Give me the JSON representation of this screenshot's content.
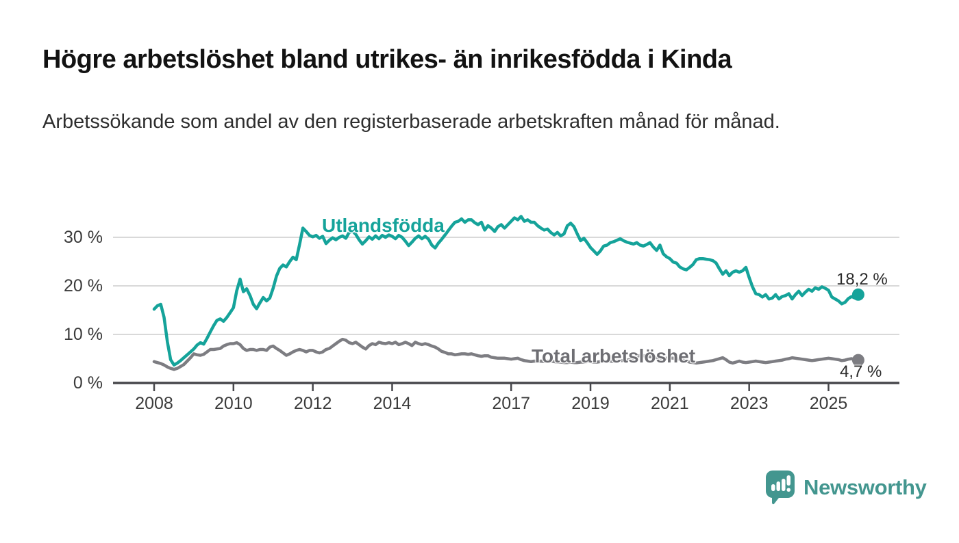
{
  "header": {
    "title": "Högre arbetslöshet bland utrikes- än inrikesfödda i Kinda",
    "subtitle": "Arbetssökande som andel av den registerbaserade arbetskraften månad för månad."
  },
  "annotations": {
    "foreign_born_last": "18,2 %",
    "total_last": "4,7 %"
  },
  "footer": {
    "brand": "Newsworthy"
  },
  "colors": {
    "foreign_born_line": "#15a39a",
    "total_line": "#7d7d82",
    "total_label_text": "#6e6e73",
    "axis_text": "#3b3b3b",
    "annotation_text": "#2b2b2b",
    "gridline": "#d9d9d9",
    "axis_line": "#47474b",
    "brand_teal": "#43968f",
    "background": "#ffffff"
  },
  "chart_data": {
    "type": "line",
    "x_unit": "month",
    "start": "2008-01",
    "end": "2025-10",
    "unit": "%",
    "grid": "horizontal",
    "legend_position": "inline-labels",
    "y_axis": {
      "range": [
        0,
        36
      ],
      "ticks": [
        {
          "value": 0,
          "label": "0 %"
        },
        {
          "value": 10,
          "label": "10 %"
        },
        {
          "value": 20,
          "label": "20 %"
        },
        {
          "value": 30,
          "label": "30 %"
        }
      ]
    },
    "x_axis": {
      "tick_years": [
        2008,
        2010,
        2012,
        2014,
        2017,
        2019,
        2021,
        2023,
        2025
      ]
    },
    "series": [
      {
        "name": "Utlandsfödda",
        "color": "#15a39a",
        "last_value": 18.2,
        "last_value_label": "18,2 %",
        "values": [
          15.2,
          15.9,
          16.2,
          13.5,
          8.5,
          4.8,
          3.7,
          4.1,
          4.6,
          5.2,
          5.8,
          6.4,
          7.0,
          7.8,
          8.3,
          8.0,
          9.2,
          10.5,
          11.8,
          12.9,
          13.2,
          12.7,
          13.5,
          14.5,
          15.5,
          19.0,
          21.4,
          18.8,
          19.4,
          18.0,
          16.2,
          15.3,
          16.5,
          17.6,
          16.9,
          17.5,
          19.5,
          22.0,
          23.6,
          24.3,
          23.9,
          25.0,
          25.9,
          25.4,
          28.5,
          31.9,
          31.2,
          30.4,
          30.1,
          30.4,
          29.8,
          30.2,
          28.7,
          29.4,
          29.9,
          29.5,
          30.0,
          30.3,
          29.8,
          31.0,
          31.3,
          30.6,
          29.5,
          28.6,
          29.3,
          30.1,
          29.6,
          30.3,
          29.7,
          30.4,
          30.0,
          30.5,
          30.2,
          29.7,
          30.4,
          30.0,
          29.2,
          28.3,
          29.0,
          29.8,
          30.3,
          29.7,
          30.2,
          29.6,
          28.4,
          27.8,
          28.8,
          29.6,
          30.5,
          31.4,
          32.3,
          33.1,
          33.3,
          33.8,
          33.1,
          33.6,
          33.6,
          33.0,
          32.6,
          33.1,
          31.5,
          32.4,
          31.9,
          31.2,
          32.2,
          32.6,
          31.9,
          32.6,
          33.3,
          34.0,
          33.6,
          34.3,
          33.3,
          33.6,
          33.1,
          33.1,
          32.4,
          31.9,
          31.5,
          31.7,
          31.0,
          30.5,
          31.0,
          30.3,
          30.7,
          32.4,
          32.9,
          32.2,
          30.7,
          29.3,
          29.8,
          28.9,
          27.9,
          27.2,
          26.5,
          27.2,
          28.2,
          28.4,
          28.9,
          29.1,
          29.4,
          29.7,
          29.3,
          29.0,
          28.8,
          28.6,
          28.9,
          28.4,
          28.2,
          28.5,
          28.9,
          28.0,
          27.3,
          28.4,
          26.6,
          26.0,
          25.6,
          24.9,
          24.7,
          23.9,
          23.5,
          23.3,
          23.8,
          24.4,
          25.4,
          25.6,
          25.6,
          25.5,
          25.4,
          25.2,
          24.7,
          23.5,
          22.4,
          23.1,
          22.1,
          22.8,
          23.1,
          22.8,
          23.1,
          23.8,
          21.7,
          19.8,
          18.4,
          18.2,
          17.7,
          18.2,
          17.3,
          17.5,
          18.2,
          17.3,
          17.8,
          18.0,
          18.4,
          17.3,
          18.2,
          18.9,
          18.0,
          18.7,
          19.3,
          18.9,
          19.6,
          19.3,
          19.8,
          19.5,
          19.1,
          17.7,
          17.3,
          16.9,
          16.3,
          16.6,
          17.4,
          17.8,
          17.5,
          18.2
        ]
      },
      {
        "name": "Total arbetslöshet",
        "color": "#7d7d82",
        "last_value": 4.7,
        "last_value_label": "4,7 %",
        "values": [
          4.4,
          4.2,
          4.0,
          3.7,
          3.3,
          3.0,
          2.8,
          3.0,
          3.4,
          3.8,
          4.5,
          5.2,
          6.0,
          5.8,
          5.7,
          5.9,
          6.4,
          6.9,
          6.9,
          7.0,
          7.1,
          7.6,
          7.9,
          8.1,
          8.1,
          8.3,
          7.9,
          7.1,
          6.7,
          6.9,
          6.9,
          6.7,
          6.9,
          6.9,
          6.7,
          7.4,
          7.6,
          7.1,
          6.7,
          6.2,
          5.7,
          6.0,
          6.4,
          6.7,
          6.9,
          6.7,
          6.4,
          6.7,
          6.7,
          6.4,
          6.2,
          6.4,
          6.9,
          7.1,
          7.6,
          8.1,
          8.6,
          9.0,
          8.8,
          8.3,
          8.1,
          8.4,
          7.9,
          7.4,
          7.0,
          7.7,
          8.1,
          7.9,
          8.4,
          8.2,
          8.1,
          8.3,
          8.1,
          8.4,
          7.9,
          8.1,
          8.4,
          8.1,
          7.7,
          8.4,
          8.1,
          7.9,
          8.1,
          7.9,
          7.6,
          7.4,
          7.0,
          6.5,
          6.3,
          6.0,
          6.0,
          5.8,
          5.9,
          6.0,
          6.0,
          5.9,
          6.0,
          5.8,
          5.6,
          5.5,
          5.6,
          5.6,
          5.3,
          5.2,
          5.1,
          5.1,
          5.1,
          5.0,
          4.9,
          5.0,
          5.1,
          4.8,
          4.6,
          4.5,
          4.4,
          4.5,
          4.4,
          4.5,
          4.4,
          4.5,
          4.5,
          4.4,
          4.3,
          4.3,
          4.2,
          4.2,
          4.3,
          4.2,
          4.2,
          4.3,
          4.3,
          4.4,
          4.4,
          4.3,
          4.3,
          4.4,
          4.4,
          4.5,
          4.5,
          4.4,
          4.5,
          4.6,
          4.6,
          4.7,
          4.8,
          5.0,
          5.4,
          5.7,
          5.6,
          5.5,
          5.4,
          5.3,
          5.2,
          5.1,
          5.0,
          5.1,
          5.2,
          5.1,
          5.0,
          4.9,
          4.7,
          4.5,
          4.3,
          4.2,
          4.1,
          4.2,
          4.3,
          4.4,
          4.5,
          4.6,
          4.8,
          5.0,
          5.2,
          4.8,
          4.3,
          4.1,
          4.3,
          4.5,
          4.3,
          4.2,
          4.3,
          4.4,
          4.5,
          4.4,
          4.3,
          4.2,
          4.3,
          4.4,
          4.5,
          4.6,
          4.7,
          4.9,
          5.0,
          5.2,
          5.1,
          5.0,
          4.9,
          4.8,
          4.7,
          4.6,
          4.7,
          4.8,
          4.9,
          5.0,
          5.1,
          5.0,
          4.9,
          4.8,
          4.6,
          4.7,
          4.9,
          5.0,
          4.8,
          4.7
        ]
      }
    ]
  }
}
